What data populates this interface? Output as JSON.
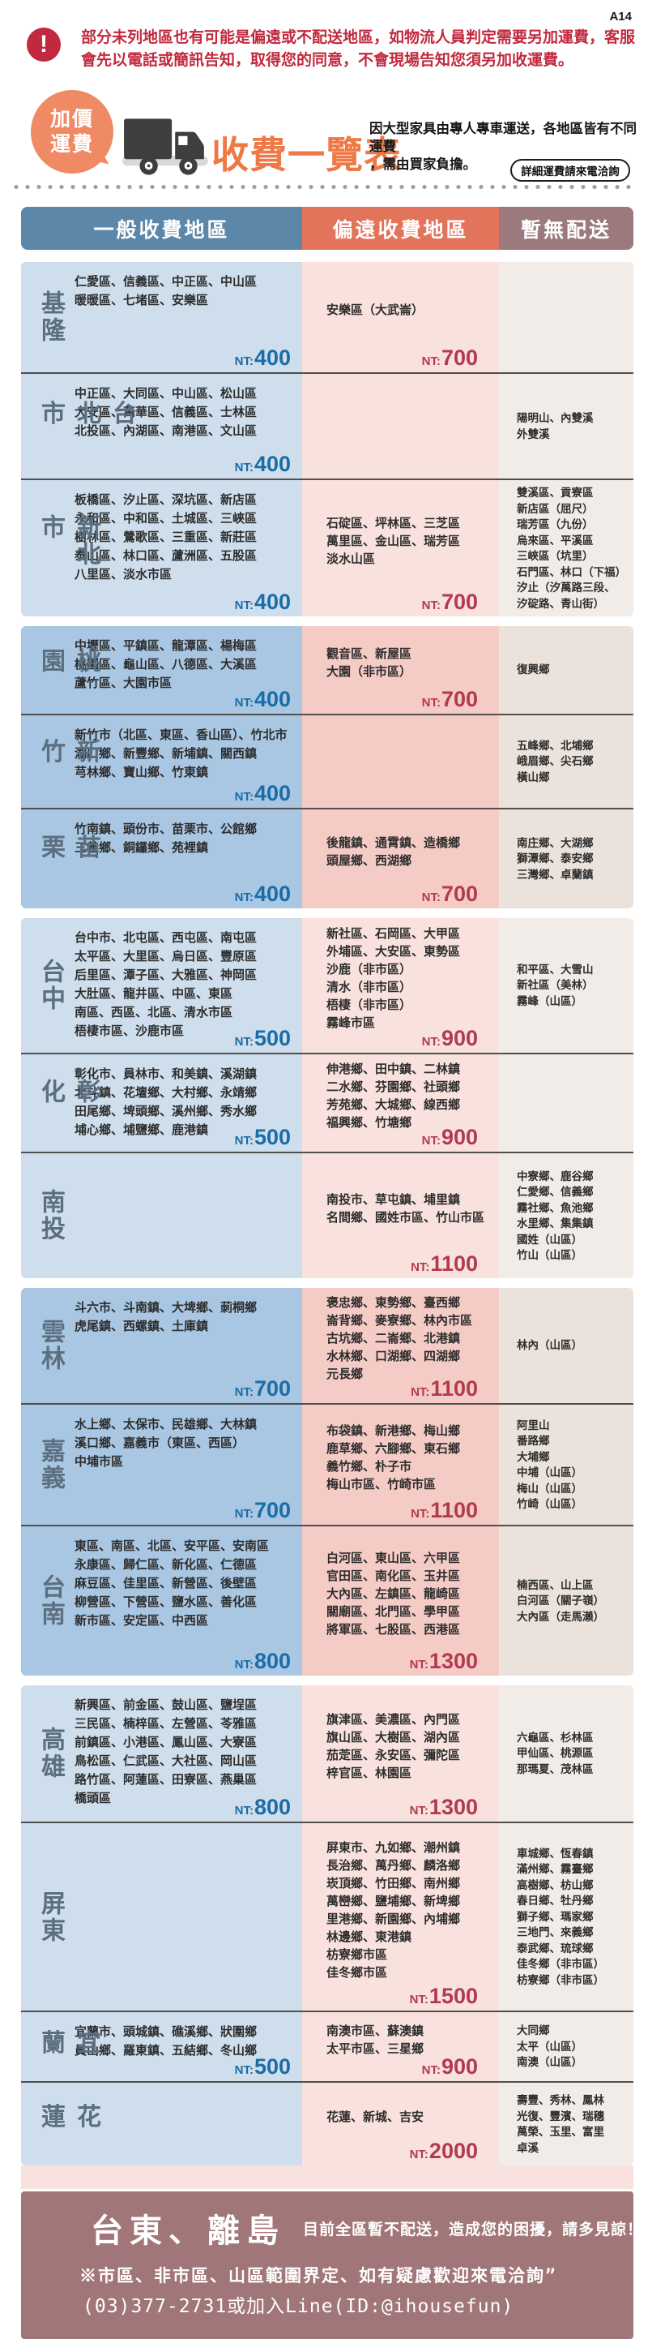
{
  "meta": {
    "page_code": "A14"
  },
  "colors": {
    "warning_red": "#c2293e",
    "accent_orange": "#ee7946",
    "bubble_orange": "#f08a64",
    "general_price": "#1b6ca7",
    "remote_price": "#b23a50",
    "footer_bg": "#a17679",
    "label_gray": "#5b6f80"
  },
  "notice": {
    "icon": "!",
    "line1": "部分未列地區也有可能是偏遠或不配送地區，如物流人員判定需要另加運費，客服",
    "line2": "會先以電話或簡訊告知，取得您的同意，不會現場告知您須另加收運費。"
  },
  "banner": {
    "bubble_line1": "加價",
    "bubble_line2": "運費",
    "title": "收費一覽表",
    "subtitle_line1": "因大型家具由專人專車運送，各地區皆有不同運費",
    "subtitle_line2": "，需由買家負擔。",
    "pill_label": "詳細運費請來電洽詢"
  },
  "table": {
    "price_prefix": "NT:",
    "headers": [
      {
        "label": "一般收費地區",
        "color": "#5d87a8"
      },
      {
        "label": "偏遠收費地區",
        "color": "#e2745c"
      },
      {
        "label": "暫無配送",
        "color": "#9c797c"
      }
    ],
    "column_tints": {
      "light": [
        "#cfdeec",
        "#f9e2dd",
        "#f1ece7"
      ],
      "dark": [
        "#a9c6e2",
        "#f5cbc5",
        "#eae2db"
      ]
    },
    "groups": [
      {
        "rows": [
          {
            "region": "基隆",
            "general": {
              "lines": [
                "仁愛區、信義區、中正區、中山區",
                "暖暖區、七堵區、安樂區"
              ],
              "price": "400"
            },
            "remote": {
              "lines": [
                "安樂區（大武崙）"
              ],
              "price": "700"
            },
            "none": {
              "lines": []
            }
          },
          {
            "region": "台北市",
            "general": {
              "lines": [
                "中正區、大同區、中山區、松山區",
                "大安區、萬華區、信義區、士林區",
                "北投區、內湖區、南港區、文山區"
              ],
              "price": "400"
            },
            "remote": {
              "lines": [],
              "price": ""
            },
            "none": {
              "lines": [
                "陽明山、內雙溪",
                "外雙溪"
              ]
            }
          },
          {
            "region": "新北市",
            "general": {
              "lines": [
                "板橋區、汐止區、深坑區、新店區",
                "永和區、中和區、土城區、三峽區",
                "樹林區、鶯歌區、三重區、新莊區",
                "泰山區、林口區、蘆洲區、五股區",
                "八里區、淡水市區"
              ],
              "price": "400"
            },
            "remote": {
              "lines": [
                "石碇區、坪林區、三芝區",
                "萬里區、金山區、瑞芳區",
                "淡水山區"
              ],
              "price": "700"
            },
            "none": {
              "lines": [
                "雙溪區、貢寮區",
                "新店區（屈尺）",
                "瑞芳區（九份）",
                "烏來區、平溪區",
                "三峽區（坑里）",
                "石門區、林口（下福）",
                "汐止（汐萬路三段、",
                "汐碇路、青山街）"
              ]
            }
          }
        ]
      },
      {
        "rows": [
          {
            "region": "桃園",
            "general": {
              "lines": [
                "中壢區、平鎮區、龍潭區、楊梅區",
                "桃園區、龜山區、八德區、大溪區",
                "蘆竹區、大園市區"
              ],
              "price": "400"
            },
            "remote": {
              "lines": [
                "觀音區、新屋區",
                "大園（非市區）"
              ],
              "price": "700"
            },
            "none": {
              "lines": [
                "復興鄉"
              ]
            }
          },
          {
            "region": "新竹",
            "general": {
              "lines": [
                "新竹市（北區、東區、香山區）、竹北市",
                "湖口鄉、新豐鄉、新埔鎮、關西鎮",
                "芎林鄉、寶山鄉、竹東鎮"
              ],
              "price": "400"
            },
            "remote": {
              "lines": [],
              "price": ""
            },
            "none": {
              "lines": [
                "五峰鄉、北埔鄉",
                "峨眉鄉、尖石鄉",
                "橫山鄉"
              ]
            }
          },
          {
            "region": "苗栗",
            "general": {
              "lines": [
                "竹南鎮、頭份市、苗栗市、公館鄉",
                "三義鄉、銅鑼鄉、苑裡鎮"
              ],
              "price": "400"
            },
            "remote": {
              "lines": [
                "後龍鎮、通霄鎮、造橋鄉",
                "頭屋鄉、西湖鄉"
              ],
              "price": "700"
            },
            "none": {
              "lines": [
                "南庄鄉、大湖鄉",
                "獅潭鄉、泰安鄉",
                "三灣鄉、卓蘭鎮"
              ]
            }
          }
        ]
      },
      {
        "rows": [
          {
            "region": "台中",
            "general": {
              "lines": [
                "台中市、北屯區、西屯區、南屯區",
                "太平區、大里區、烏日區、豐原區",
                "后里區、潭子區、大雅區、神岡區",
                "大肚區、龍井區、中區、東區",
                "南區、西區、北區、清水市區",
                "梧棲市區、沙鹿市區"
              ],
              "price": "500"
            },
            "remote": {
              "lines": [
                "新社區、石岡區、大甲區",
                "外埔區、大安區、東勢區",
                "沙鹿（非市區）",
                "清水（非市區）",
                "梧棲（非市區）",
                "霧峰市區"
              ],
              "price": "900"
            },
            "none": {
              "lines": [
                "和平區、大雪山",
                "新社區（美林）",
                "霧峰（山區）"
              ]
            }
          },
          {
            "region": "彰化",
            "general": {
              "lines": [
                "彰化市、員林市、和美鎮、溪湖鎮",
                "北斗鎮、花壇鄉、大村鄉、永靖鄉",
                "田尾鄉、埤頭鄉、溪州鄉、秀水鄉",
                "埔心鄉、埔鹽鄉、鹿港鎮"
              ],
              "price": "500"
            },
            "remote": {
              "lines": [
                "伸港鄉、田中鎮、二林鎮",
                "二水鄉、芬園鄉、社頭鄉",
                "芳苑鄉、大城鄉、線西鄉",
                "福興鄉、竹塘鄉"
              ],
              "price": "900"
            },
            "none": {
              "lines": []
            }
          },
          {
            "region": "南投",
            "general": {
              "lines": [],
              "price": ""
            },
            "remote": {
              "lines": [
                "南投市、草屯鎮、埔里鎮",
                "名間鄉、國姓市區、竹山市區"
              ],
              "price": "1100"
            },
            "none": {
              "lines": [
                "中寮鄉、鹿谷鄉",
                "仁愛鄉、信義鄉",
                "霧社鄉、魚池鄉",
                "水里鄉、集集鎮",
                "國姓（山區）",
                "竹山（山區）"
              ]
            }
          }
        ]
      },
      {
        "rows": [
          {
            "region": "雲林",
            "general": {
              "lines": [
                "斗六市、斗南鎮、大埤鄉、莿桐鄉",
                "虎尾鎮、西螺鎮、土庫鎮"
              ],
              "price": "700"
            },
            "remote": {
              "lines": [
                "褒忠鄉、東勢鄉、臺西鄉",
                "崙背鄉、麥寮鄉、林內市區",
                "古坑鄉、二崙鄉、北港鎮",
                "水林鄉、口湖鄉、四湖鄉",
                "元長鄉"
              ],
              "price": "1100"
            },
            "none": {
              "lines": [
                "林內（山區）"
              ]
            }
          },
          {
            "region": "嘉義",
            "general": {
              "lines": [
                "水上鄉、太保市、民雄鄉、大林鎮",
                "溪口鄉、嘉義市（東區、西區）",
                "中埔市區"
              ],
              "price": "700"
            },
            "remote": {
              "lines": [
                "布袋鎮、新港鄉、梅山鄉",
                "鹿草鄉、六腳鄉、東石鄉",
                "義竹鄉、朴子市",
                "梅山市區、竹崎市區"
              ],
              "price": "1100"
            },
            "none": {
              "lines": [
                "阿里山",
                "番路鄉",
                "大埔鄉",
                "中埔（山區）",
                "梅山（山區）",
                "竹崎（山區）"
              ]
            }
          },
          {
            "region": "台南",
            "general": {
              "lines": [
                "東區、南區、北區、安平區、安南區",
                "永康區、歸仁區、新化區、仁德區",
                "麻豆區、佳里區、新營區、後壁區",
                "柳營區、下營區、鹽水區、善化區",
                "新市區、安定區、中西區"
              ],
              "price": "800"
            },
            "remote": {
              "lines": [
                "白河區、東山區、六甲區",
                "官田區、南化區、玉井區",
                "大內區、左鎮區、龍崎區",
                "關廟區、北門區、學甲區",
                "將軍區、七股區、西港區"
              ],
              "price": "1300"
            },
            "none": {
              "lines": [
                "楠西區、山上區",
                "白河區（關子嶺）",
                "大內區（走馬瀨）"
              ]
            }
          }
        ]
      },
      {
        "rows": [
          {
            "region": "高雄",
            "general": {
              "lines": [
                "新興區、前金區、鼓山區、鹽埕區",
                "三民區、楠梓區、左營區、苓雅區",
                "前鎮區、小港區、鳳山區、大寮區",
                "鳥松區、仁武區、大社區、岡山區",
                "路竹區、阿蓮區、田寮區、燕巢區",
                "橋頭區"
              ],
              "price": "800"
            },
            "remote": {
              "lines": [
                "旗津區、美濃區、內門區",
                "旗山區、大樹區、湖內區",
                "茄萣區、永安區、彌陀區",
                "梓官區、林園區"
              ],
              "price": "1300"
            },
            "none": {
              "lines": [
                "六龜區、杉林區",
                "甲仙區、桃源區",
                "那瑪夏、茂林區"
              ]
            }
          },
          {
            "region": "屏東",
            "general": {
              "lines": [],
              "price": ""
            },
            "remote": {
              "lines": [
                "屏東市、九如鄉、潮州鎮",
                "長治鄉、萬丹鄉、麟洛鄉",
                "崁頂鄉、竹田鄉、南州鄉",
                "萬巒鄉、鹽埔鄉、新埤鄉",
                "里港鄉、新園鄉、內埔鄉",
                "林邊鄉、東港鎮",
                "枋寮鄉市區",
                "佳冬鄉市區"
              ],
              "price": "1500"
            },
            "none": {
              "lines": [
                "車城鄉、恆春鎮",
                "滿州鄉、霧臺鄉",
                "高樹鄉、枋山鄉",
                "春日鄉、牡丹鄉",
                "獅子鄉、瑪家鄉",
                "三地門、來義鄉",
                "泰武鄉、琉球鄉",
                "佳冬鄉（非市區）",
                "枋寮鄉（非市區）"
              ]
            }
          },
          {
            "region": "宜蘭",
            "general": {
              "lines": [
                "宜蘭市、頭城鎮、礁溪鄉、狀圍鄉",
                "員山鄉、羅東鎮、五結鄉、冬山鄉"
              ],
              "price": "500"
            },
            "remote": {
              "lines": [
                "南澳市區、蘇澳鎮",
                "太平市區、三星鄉"
              ],
              "price": "900"
            },
            "none": {
              "lines": [
                "大同鄉",
                "太平（山區）",
                "南澳（山區）"
              ]
            }
          },
          {
            "region": "花蓮",
            "general": {
              "lines": [],
              "price": ""
            },
            "remote": {
              "lines": [
                "花蓮、新城、吉安"
              ],
              "price": "2000"
            },
            "none": {
              "lines": [
                "壽豐、秀林、鳳林",
                "光復、豐濱、瑞穗",
                "萬榮、玉里、富里",
                "卓溪"
              ]
            }
          }
        ]
      }
    ]
  },
  "footer": {
    "title": "台東、離島",
    "subtitle": "目前全區暫不配送，造成您的困擾，請多見諒！",
    "note1": "※市區、非市區、山區範圍界定、如有疑慮歡迎來電洽詢”",
    "note2": "(03)377-2731或加入Line(ID:@ihousefun)"
  }
}
